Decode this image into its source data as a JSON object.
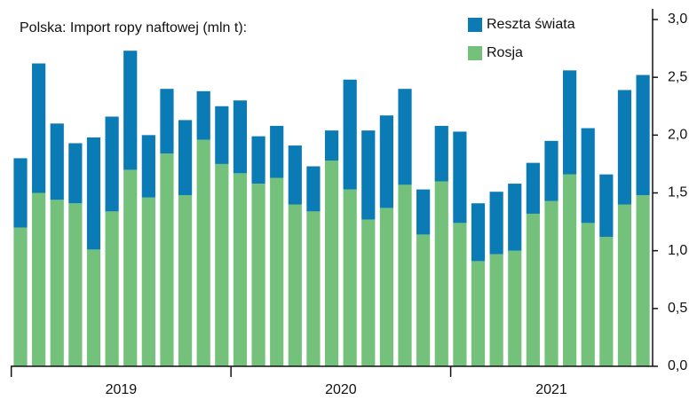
{
  "chart_data": {
    "type": "stacked_bar",
    "title": "Polska: Import ropy naftowej (mln t):",
    "categories": [
      null,
      null,
      null,
      null,
      null,
      null,
      null,
      null,
      null,
      null,
      null,
      null,
      null,
      null,
      null,
      null,
      null,
      null,
      null,
      null,
      null,
      null,
      null,
      null,
      null,
      null,
      null,
      null,
      null,
      null,
      null,
      null,
      null,
      null,
      null
    ],
    "x_groups": [
      {
        "label": "2019",
        "count": 12
      },
      {
        "label": "2020",
        "count": 12
      },
      {
        "label": "2021",
        "count": 11
      }
    ],
    "series": [
      {
        "name": "Rosja",
        "color": "#74c17c",
        "values": [
          1.2,
          1.5,
          1.44,
          1.41,
          1.01,
          1.34,
          1.7,
          1.46,
          1.84,
          1.48,
          1.96,
          1.75,
          1.67,
          1.58,
          1.63,
          1.4,
          1.34,
          1.78,
          1.53,
          1.27,
          1.37,
          1.57,
          1.14,
          1.6,
          1.24,
          0.91,
          0.97,
          1.0,
          1.32,
          1.43,
          1.66,
          1.24,
          1.12,
          1.4,
          1.48
        ]
      },
      {
        "name": "Reszta świata",
        "color": "#0b7bb5",
        "values": [
          0.6,
          1.12,
          0.66,
          0.52,
          0.97,
          0.82,
          1.03,
          0.54,
          0.56,
          0.65,
          0.42,
          0.5,
          0.63,
          0.41,
          0.45,
          0.51,
          0.39,
          0.26,
          0.95,
          0.77,
          0.8,
          0.83,
          0.39,
          0.48,
          0.79,
          0.5,
          0.54,
          0.58,
          0.44,
          0.52,
          0.9,
          0.82,
          0.54,
          0.99,
          1.04
        ]
      }
    ],
    "ylim": [
      0,
      3.0
    ],
    "yticks": [
      {
        "value": 0,
        "label": "0,0"
      },
      {
        "value": 0.5,
        "label": "0,5"
      },
      {
        "value": 1.0,
        "label": "1,0"
      },
      {
        "value": 1.5,
        "label": "1,5"
      },
      {
        "value": 2.0,
        "label": "2,0"
      },
      {
        "value": 2.5,
        "label": "2,5"
      },
      {
        "value": 3.0,
        "label": "3,0"
      }
    ],
    "y_axis_side": "right",
    "legend": "top-right"
  }
}
